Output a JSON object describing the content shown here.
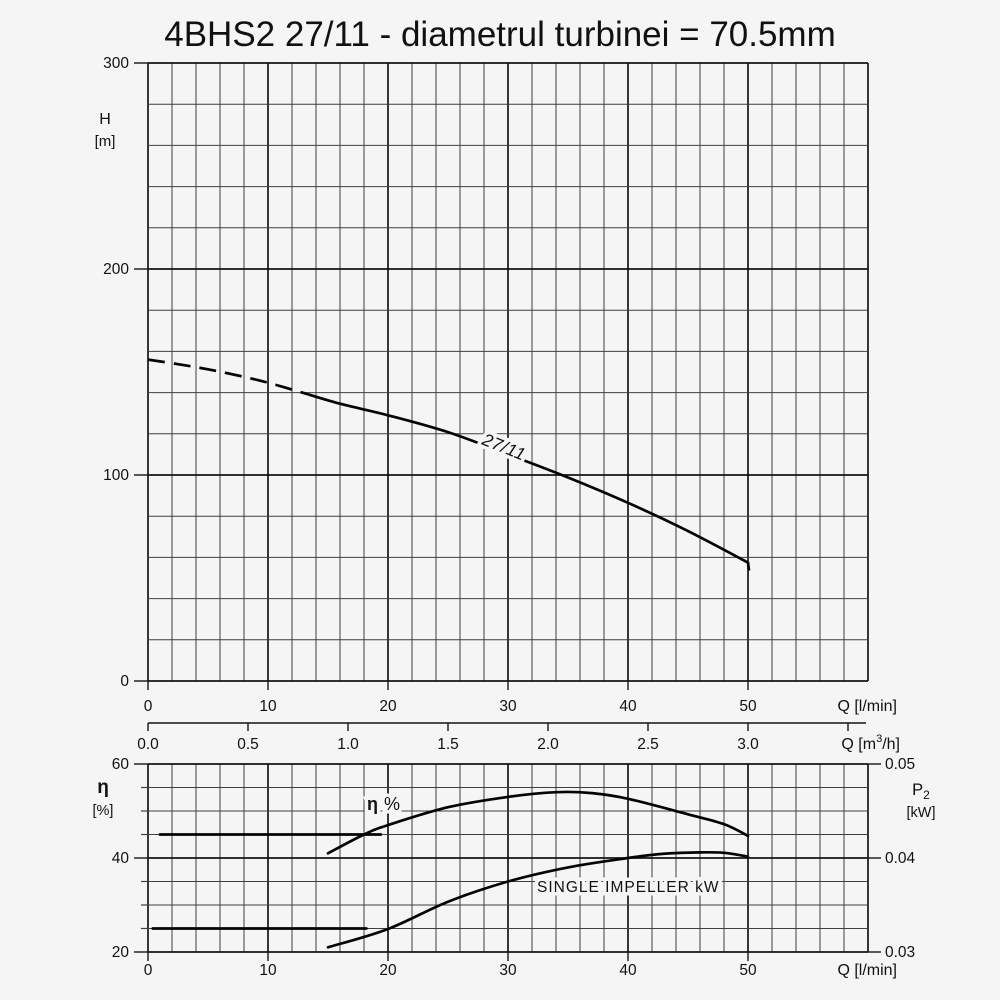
{
  "title": "4BHS2 27/11 - diametrul turbinei = 70.5mm",
  "colors": {
    "background": "#f5f5f5",
    "grid_minor": "#3f3f3f",
    "grid_major": "#151515",
    "curve": "#050505",
    "text": "#111111"
  },
  "chart_data": [
    {
      "type": "line",
      "name": "head-flow-chart",
      "title": "4BHS2 27/11 - diametrul turbinei = 70.5mm",
      "ylabel": "H",
      "ylabel_unit": "[m]",
      "ylim": [
        0,
        300
      ],
      "ytick_values": [
        300,
        200,
        100,
        0
      ],
      "y_grid_step": 20,
      "xlabel": "Q [l/min]",
      "xlim": [
        0,
        60
      ],
      "xtick_values": [
        0,
        10,
        20,
        30,
        40,
        50
      ],
      "x_grid_step": 2,
      "x2label_parts": {
        "pre": "Q [m",
        "sup": "3",
        "post": "/h]"
      },
      "x2tick_labels": [
        "0.0",
        "0.5",
        "1.0",
        "1.5",
        "2.0",
        "2.5",
        "3.0"
      ],
      "x2tick_values": [
        0.0,
        0.5,
        1.0,
        1.5,
        2.0,
        2.5,
        3.0
      ],
      "x2_extra_ticks": [
        3.5
      ],
      "x2_lmin_per_unit": 16.6667,
      "curve_label": "27/11",
      "series": [
        {
          "name": "27/11",
          "dash_until": 13.2,
          "end_tick": true,
          "points": [
            [
              0,
              156
            ],
            [
              2.5,
              153.8
            ],
            [
              5,
              151.3
            ],
            [
              7.5,
              148.3
            ],
            [
              10,
              144.8
            ],
            [
              13.2,
              139.4
            ],
            [
              16,
              134.6
            ],
            [
              20,
              129
            ],
            [
              25,
              120.8
            ],
            [
              30,
              110
            ],
            [
              35,
              98.8
            ],
            [
              40,
              86.5
            ],
            [
              45,
              72.8
            ],
            [
              50,
              57.5
            ]
          ]
        }
      ]
    },
    {
      "type": "line",
      "name": "efficiency-power-chart",
      "ylabel": "η",
      "ylabel_unit": "[%]",
      "ylim": [
        20,
        60
      ],
      "ytick_values": [
        60,
        40,
        20
      ],
      "y_grid_step": 5,
      "y2label_parts": {
        "pre": "P",
        "sub": "2"
      },
      "y2label_unit": "[kW]",
      "y2tick_labels": [
        "0.05",
        "0.04",
        "0.03"
      ],
      "y2tick_at": [
        60,
        40,
        20
      ],
      "xlabel": "Q [l/min]",
      "xlim": [
        0,
        60
      ],
      "xtick_values": [
        0,
        10,
        20,
        30,
        40,
        50
      ],
      "x_grid_step": 2,
      "labels": {
        "eta_symbol": "η",
        "eta_percent": "%",
        "power_curve": "SINGLE IMPELLER kW"
      },
      "series": [
        {
          "name": "efficiency",
          "points": [
            [
              15,
              41
            ],
            [
              18,
              45
            ],
            [
              20,
              47
            ],
            [
              25,
              50.8
            ],
            [
              30,
              53
            ],
            [
              34,
              54
            ],
            [
              37,
              53.8
            ],
            [
              40,
              52.6
            ],
            [
              45,
              49.3
            ],
            [
              48,
              47.2
            ],
            [
              50,
              44.7
            ]
          ]
        },
        {
          "name": "single-impeller-power",
          "points": [
            [
              15,
              21
            ],
            [
              20,
              24.9
            ],
            [
              25,
              30.7
            ],
            [
              30,
              35
            ],
            [
              35,
              38
            ],
            [
              40,
              40
            ],
            [
              43,
              40.9
            ],
            [
              46,
              41.2
            ],
            [
              48,
              41.1
            ],
            [
              50,
              40.3
            ]
          ]
        },
        {
          "name": "reference-line-45",
          "points": [
            [
              1,
              45
            ],
            [
              19.4,
              45
            ]
          ]
        },
        {
          "name": "reference-line-25",
          "points": [
            [
              0.4,
              25
            ],
            [
              18.2,
              25
            ]
          ]
        }
      ]
    }
  ]
}
